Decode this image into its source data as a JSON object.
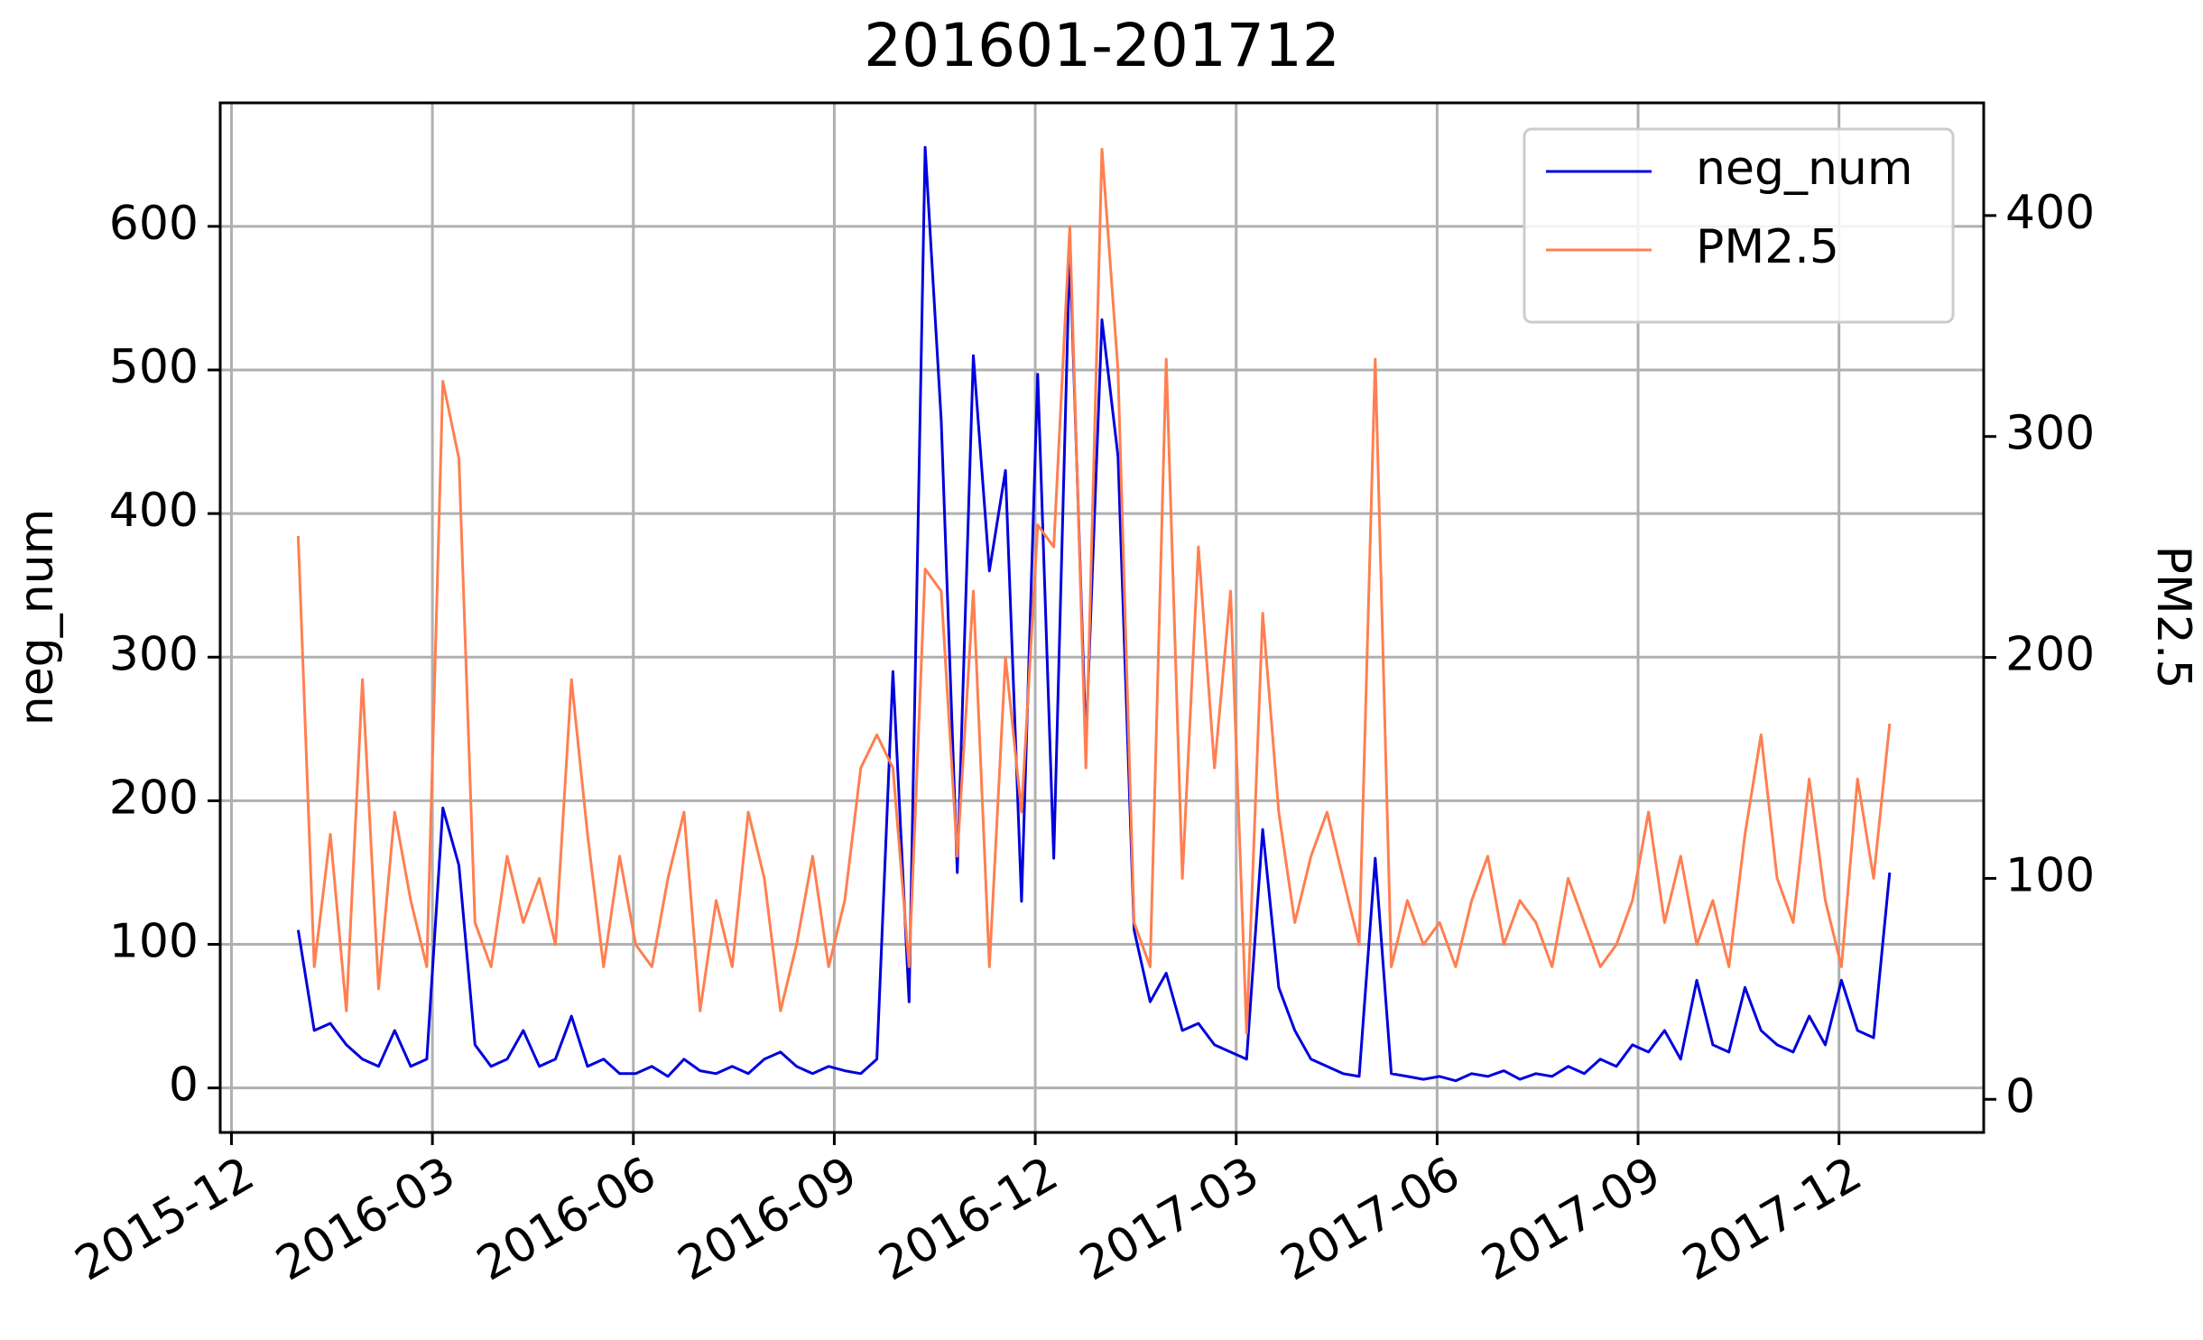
{
  "chart_data": {
    "type": "line",
    "title": "201601-201712",
    "y_label": "neg_num",
    "y2_label": "PM2.5",
    "x": [
      2016.0,
      2016.02,
      2016.04,
      2016.06,
      2016.08,
      2016.1,
      2016.12,
      2016.14,
      2016.16,
      2016.18,
      2016.2,
      2016.22,
      2016.24,
      2016.26,
      2016.28,
      2016.3,
      2016.32,
      2016.34,
      2016.36,
      2016.38,
      2016.4,
      2016.42,
      2016.44,
      2016.46,
      2016.48,
      2016.5,
      2016.52,
      2016.54,
      2016.56,
      2016.58,
      2016.6,
      2016.62,
      2016.64,
      2016.66,
      2016.68,
      2016.7,
      2016.72,
      2016.74,
      2016.76,
      2016.78,
      2016.8,
      2016.82,
      2016.84,
      2016.86,
      2016.88,
      2016.9,
      2016.92,
      2016.94,
      2016.96,
      2016.98,
      2017.0,
      2017.02,
      2017.04,
      2017.06,
      2017.08,
      2017.1,
      2017.12,
      2017.14,
      2017.16,
      2017.18,
      2017.2,
      2017.22,
      2017.24,
      2017.26,
      2017.28,
      2017.3,
      2017.32,
      2017.34,
      2017.36,
      2017.38,
      2017.4,
      2017.42,
      2017.44,
      2017.46,
      2017.48,
      2017.5,
      2017.52,
      2017.54,
      2017.56,
      2017.58,
      2017.6,
      2017.62,
      2017.64,
      2017.66,
      2017.68,
      2017.7,
      2017.72,
      2017.74,
      2017.76,
      2017.78,
      2017.8,
      2017.82,
      2017.84,
      2017.86,
      2017.88,
      2017.9,
      2017.92,
      2017.94,
      2017.96,
      2017.98
    ],
    "series": [
      {
        "name": "neg_num",
        "color": "#0000dd",
        "axis": "y",
        "values": [
          110,
          40,
          45,
          30,
          20,
          15,
          40,
          15,
          20,
          195,
          155,
          30,
          15,
          20,
          40,
          15,
          20,
          50,
          15,
          20,
          10,
          10,
          15,
          8,
          20,
          12,
          10,
          15,
          10,
          20,
          25,
          15,
          10,
          15,
          12,
          10,
          20,
          290,
          60,
          655,
          465,
          150,
          510,
          360,
          430,
          130,
          497,
          160,
          585,
          240,
          535,
          440,
          110,
          60,
          80,
          40,
          45,
          30,
          25,
          20,
          180,
          70,
          40,
          20,
          15,
          10,
          8,
          160,
          10,
          8,
          6,
          8,
          5,
          10,
          8,
          12,
          6,
          10,
          8,
          15,
          10,
          20,
          15,
          30,
          25,
          40,
          20,
          75,
          30,
          25,
          70,
          40,
          30,
          25,
          50,
          30,
          75,
          40,
          35,
          150
        ]
      },
      {
        "name": "PM2.5",
        "color": "#ff7f50",
        "axis": "y2",
        "values": [
          255,
          60,
          120,
          40,
          190,
          50,
          130,
          90,
          60,
          325,
          290,
          80,
          60,
          110,
          80,
          100,
          70,
          190,
          120,
          60,
          110,
          70,
          60,
          100,
          130,
          40,
          90,
          60,
          130,
          100,
          40,
          70,
          110,
          60,
          90,
          150,
          165,
          150,
          60,
          240,
          230,
          110,
          230,
          60,
          200,
          130,
          260,
          250,
          395,
          150,
          430,
          330,
          80,
          60,
          335,
          100,
          250,
          150,
          230,
          30,
          220,
          130,
          80,
          110,
          130,
          100,
          70,
          335,
          60,
          90,
          70,
          80,
          60,
          90,
          110,
          70,
          90,
          80,
          60,
          100,
          80,
          60,
          70,
          90,
          130,
          80,
          110,
          70,
          90,
          60,
          120,
          165,
          100,
          80,
          145,
          90,
          60,
          145,
          100,
          170
        ]
      }
    ],
    "xlim": [
      2015.903,
      2018.097
    ],
    "xticks": [
      {
        "value": 2015.917,
        "label": "2015-12"
      },
      {
        "value": 2016.167,
        "label": "2016-03"
      },
      {
        "value": 2016.417,
        "label": "2016-06"
      },
      {
        "value": 2016.667,
        "label": "2016-09"
      },
      {
        "value": 2016.917,
        "label": "2016-12"
      },
      {
        "value": 2017.167,
        "label": "2017-03"
      },
      {
        "value": 2017.417,
        "label": "2017-06"
      },
      {
        "value": 2017.667,
        "label": "2017-09"
      },
      {
        "value": 2017.917,
        "label": "2017-12"
      }
    ],
    "ylim": [
      -31,
      686
    ],
    "yticks": [
      0,
      100,
      200,
      300,
      400,
      500,
      600
    ],
    "y2lim": [
      -15,
      451
    ],
    "y2ticks": [
      0,
      100,
      200,
      300,
      400
    ],
    "grid": true,
    "legend": "upper right"
  }
}
